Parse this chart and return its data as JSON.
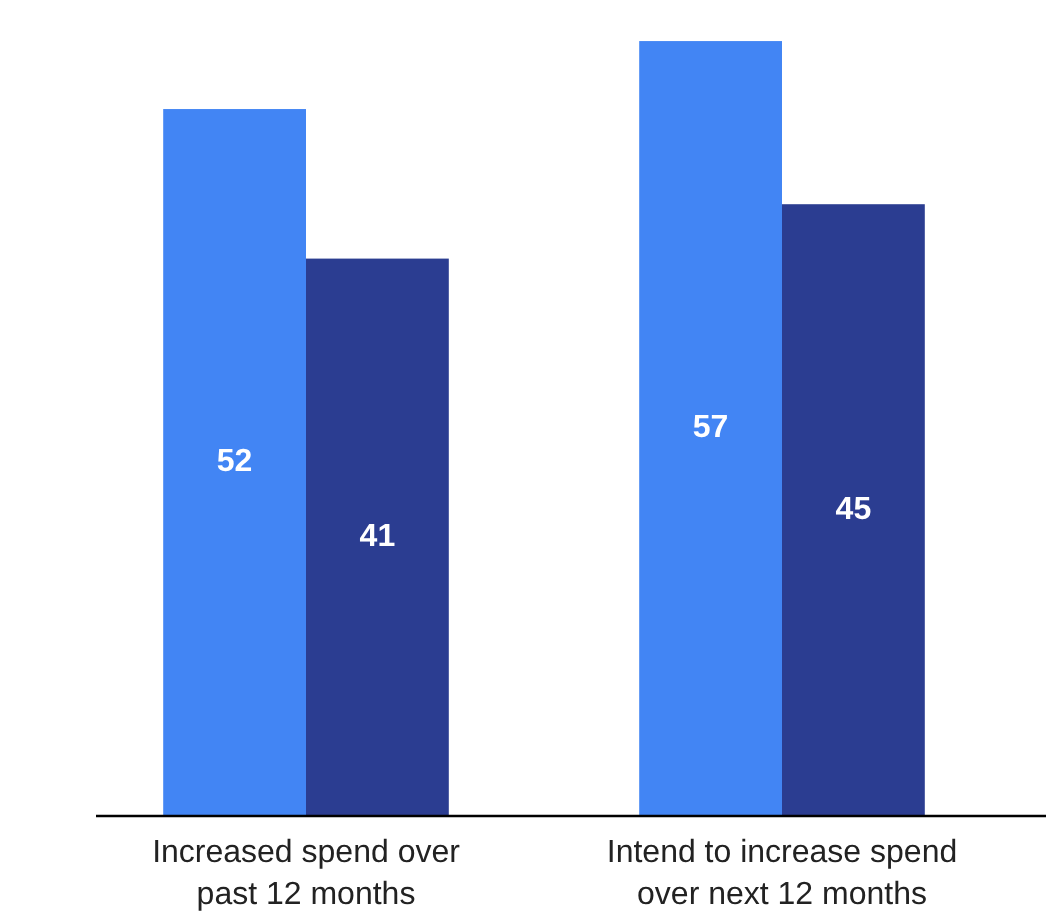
{
  "chart_data": {
    "type": "bar",
    "categories": [
      "Increased spend over past 12 months",
      "Intend to increase spend over next 12 months"
    ],
    "series": [
      {
        "color": "#4285f4",
        "values": [
          52,
          57
        ]
      },
      {
        "color": "#2b3d91",
        "values": [
          41,
          45
        ]
      }
    ],
    "data_labels": true
  }
}
